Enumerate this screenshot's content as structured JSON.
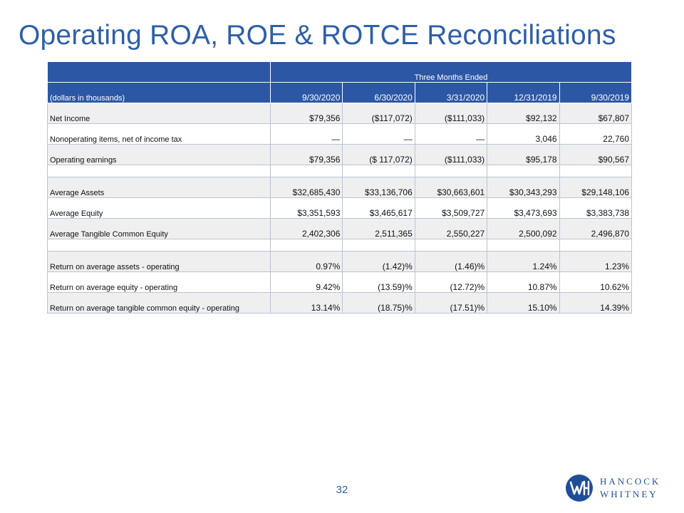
{
  "title": "Operating ROA, ROE & ROTCE Reconciliations",
  "table": {
    "group_header": "Three Months Ended",
    "units_label": "(dollars in thousands)",
    "columns": [
      "9/30/2020",
      "6/30/2020",
      "3/31/2020",
      "12/31/2019",
      "9/30/2019"
    ],
    "rows": [
      {
        "label": "Net Income",
        "values": [
          "$79,356",
          "($117,072)",
          "($111,033)",
          "$92,132",
          "$67,807"
        ]
      },
      {
        "label": "Nonoperating items, net of income tax",
        "values": [
          "—",
          "—",
          "—",
          "3,046",
          "22,760"
        ]
      },
      {
        "label": "Operating earnings",
        "values": [
          "$79,356",
          "($ 117,072)",
          "($111,033)",
          "$95,178",
          "$90,567"
        ]
      },
      {
        "label": "Average Assets",
        "values": [
          "$32,685,430",
          "$33,136,706",
          "$30,663,601",
          "$30,343,293",
          "$29,148,106"
        ]
      },
      {
        "label": "Average Equity",
        "values": [
          "$3,351,593",
          "$3,465,617",
          "$3,509,727",
          "$3,473,693",
          "$3,383,738"
        ]
      },
      {
        "label": "Average Tangible Common Equity",
        "values": [
          "2,402,306",
          "2,511,365",
          "2,550,227",
          "2,500,092",
          "2,496,870"
        ]
      },
      {
        "label": "Return on average assets - operating",
        "values": [
          "0.97%",
          "(1.42)%",
          "(1.46)%",
          "1.24%",
          "1.23%"
        ]
      },
      {
        "label": "Return on average equity - operating",
        "values": [
          "9.42%",
          "(13.59)%",
          "(12.72)%",
          "10.87%",
          "10.62%"
        ]
      },
      {
        "label": "Return on average tangible common equity - operating",
        "values": [
          "13.14%",
          "(18.75)%",
          "(17.51)%",
          "15.10%",
          "14.39%"
        ]
      }
    ]
  },
  "page_number": "32",
  "logo": {
    "line1": "HANCOCK",
    "line2": "WHITNEY",
    "color": "#1f4e99"
  },
  "colors": {
    "accent": "#2e5fa8",
    "header_bg": "#2c57a5",
    "shade": "#efeff0"
  }
}
